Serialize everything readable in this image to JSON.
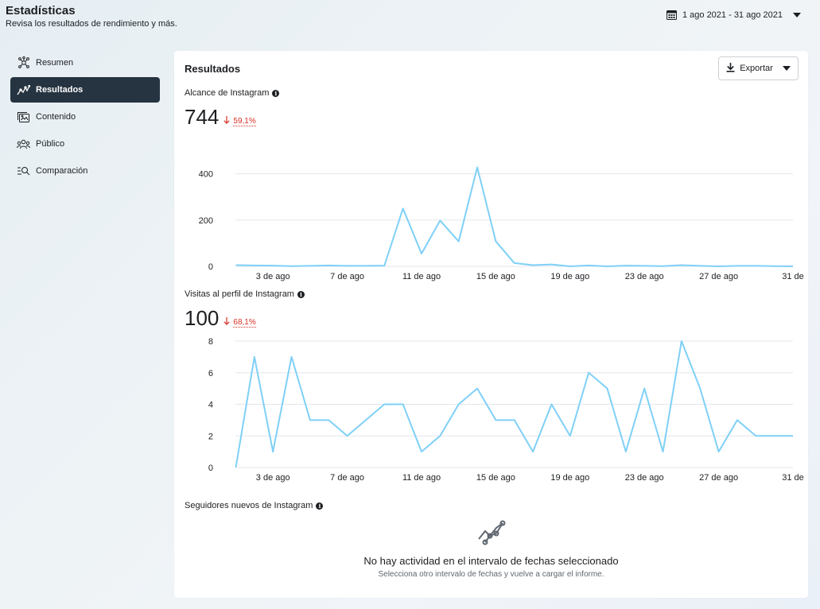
{
  "header": {
    "title": "Estadísticas",
    "subtitle": "Revisa los resultados de rendimiento y más.",
    "date_range": "1 ago 2021 - 31 ago 2021"
  },
  "sidebar": {
    "items": [
      {
        "label": "Resumen",
        "icon": "overview-icon"
      },
      {
        "label": "Resultados",
        "icon": "trend-icon",
        "active": true
      },
      {
        "label": "Contenido",
        "icon": "content-icon"
      },
      {
        "label": "Público",
        "icon": "audience-icon"
      },
      {
        "label": "Comparación",
        "icon": "compare-icon"
      }
    ]
  },
  "card": {
    "title": "Resultados",
    "export_label": "Exportar"
  },
  "metrics": [
    {
      "label": "Alcance de Instagram",
      "value": "744",
      "change": "59,1%",
      "direction": "down"
    },
    {
      "label": "Visitas al perfil de Instagram",
      "value": "100",
      "change": "68,1%",
      "direction": "down"
    },
    {
      "label": "Seguidores nuevos de Instagram"
    }
  ],
  "empty_state": {
    "title": "No hay actividad en el intervalo de fechas seleccionado",
    "subtitle": "Selecciona otro intervalo de fechas y vuelve a cargar el informe."
  },
  "colors": {
    "line": "#7fd0f7",
    "grid": "#e4e6eb",
    "down": "#d93025",
    "active_nav": "#263340"
  },
  "chart_data": [
    {
      "type": "line",
      "title": "Alcance de Instagram",
      "x": [
        1,
        2,
        3,
        4,
        5,
        6,
        7,
        8,
        9,
        10,
        11,
        12,
        13,
        14,
        15,
        16,
        17,
        18,
        19,
        20,
        21,
        22,
        23,
        24,
        25,
        26,
        27,
        28,
        29,
        30,
        31
      ],
      "series": [
        {
          "values": [
            5,
            4,
            3,
            1,
            2,
            4,
            2,
            2,
            3,
            250,
            55,
            198,
            108,
            428,
            108,
            14,
            5,
            8,
            0,
            4,
            0,
            3,
            2,
            1,
            5,
            2,
            0,
            2,
            2,
            1,
            0
          ]
        }
      ],
      "ylim": [
        0,
        440
      ],
      "yticks": [
        0,
        200,
        400
      ],
      "xtick_labels": [
        {
          "x": 3,
          "label": "3 de ago"
        },
        {
          "x": 7,
          "label": "7 de ago"
        },
        {
          "x": 11,
          "label": "11 de ago"
        },
        {
          "x": 15,
          "label": "15 de ago"
        },
        {
          "x": 19,
          "label": "19 de ago"
        },
        {
          "x": 23,
          "label": "23 de ago"
        },
        {
          "x": 27,
          "label": "27 de ago"
        },
        {
          "x": 31,
          "label": "31 de"
        }
      ],
      "grid": true
    },
    {
      "type": "line",
      "title": "Visitas al perfil de Instagram",
      "x": [
        1,
        2,
        3,
        4,
        5,
        6,
        7,
        8,
        9,
        10,
        11,
        12,
        13,
        14,
        15,
        16,
        17,
        18,
        19,
        20,
        21,
        22,
        23,
        24,
        25,
        26,
        27,
        28,
        29,
        30,
        31
      ],
      "series": [
        {
          "values": [
            0,
            7,
            1,
            7,
            3,
            3,
            2,
            3,
            4,
            4,
            1,
            2,
            4,
            5,
            3,
            3,
            1,
            4,
            2,
            6,
            5,
            1,
            5,
            1,
            8,
            5,
            1,
            3,
            2,
            2,
            2
          ]
        }
      ],
      "ylim": [
        0,
        8
      ],
      "yticks": [
        0,
        2,
        4,
        6,
        8
      ],
      "xtick_labels": [
        {
          "x": 3,
          "label": "3 de ago"
        },
        {
          "x": 7,
          "label": "7 de ago"
        },
        {
          "x": 11,
          "label": "11 de ago"
        },
        {
          "x": 15,
          "label": "15 de ago"
        },
        {
          "x": 19,
          "label": "19 de ago"
        },
        {
          "x": 23,
          "label": "23 de ago"
        },
        {
          "x": 27,
          "label": "27 de ago"
        },
        {
          "x": 31,
          "label": "31 de"
        }
      ],
      "grid": true
    }
  ]
}
